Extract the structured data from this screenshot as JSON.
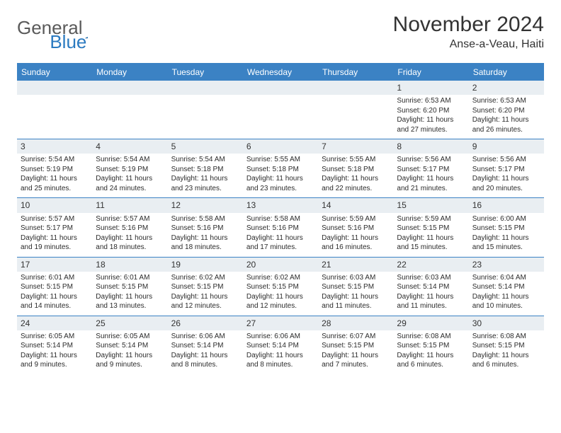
{
  "brand": {
    "part1": "General",
    "part2": "Blue"
  },
  "title": "November 2024",
  "location": "Anse-a-Veau, Haiti",
  "colors": {
    "header_bg": "#3b82c4",
    "header_text": "#ffffff",
    "daynum_bg": "#e9eef2",
    "border": "#3b82c4",
    "text": "#2b2b2b",
    "brand_gray": "#5a5a5a",
    "brand_blue": "#2b7ac0"
  },
  "daynames": [
    "Sunday",
    "Monday",
    "Tuesday",
    "Wednesday",
    "Thursday",
    "Friday",
    "Saturday"
  ],
  "weeks": [
    [
      {
        "empty": true
      },
      {
        "empty": true
      },
      {
        "empty": true
      },
      {
        "empty": true
      },
      {
        "empty": true
      },
      {
        "num": "1",
        "sunrise": "Sunrise: 6:53 AM",
        "sunset": "Sunset: 6:20 PM",
        "daylight": "Daylight: 11 hours and 27 minutes."
      },
      {
        "num": "2",
        "sunrise": "Sunrise: 6:53 AM",
        "sunset": "Sunset: 6:20 PM",
        "daylight": "Daylight: 11 hours and 26 minutes."
      }
    ],
    [
      {
        "num": "3",
        "sunrise": "Sunrise: 5:54 AM",
        "sunset": "Sunset: 5:19 PM",
        "daylight": "Daylight: 11 hours and 25 minutes."
      },
      {
        "num": "4",
        "sunrise": "Sunrise: 5:54 AM",
        "sunset": "Sunset: 5:19 PM",
        "daylight": "Daylight: 11 hours and 24 minutes."
      },
      {
        "num": "5",
        "sunrise": "Sunrise: 5:54 AM",
        "sunset": "Sunset: 5:18 PM",
        "daylight": "Daylight: 11 hours and 23 minutes."
      },
      {
        "num": "6",
        "sunrise": "Sunrise: 5:55 AM",
        "sunset": "Sunset: 5:18 PM",
        "daylight": "Daylight: 11 hours and 23 minutes."
      },
      {
        "num": "7",
        "sunrise": "Sunrise: 5:55 AM",
        "sunset": "Sunset: 5:18 PM",
        "daylight": "Daylight: 11 hours and 22 minutes."
      },
      {
        "num": "8",
        "sunrise": "Sunrise: 5:56 AM",
        "sunset": "Sunset: 5:17 PM",
        "daylight": "Daylight: 11 hours and 21 minutes."
      },
      {
        "num": "9",
        "sunrise": "Sunrise: 5:56 AM",
        "sunset": "Sunset: 5:17 PM",
        "daylight": "Daylight: 11 hours and 20 minutes."
      }
    ],
    [
      {
        "num": "10",
        "sunrise": "Sunrise: 5:57 AM",
        "sunset": "Sunset: 5:17 PM",
        "daylight": "Daylight: 11 hours and 19 minutes."
      },
      {
        "num": "11",
        "sunrise": "Sunrise: 5:57 AM",
        "sunset": "Sunset: 5:16 PM",
        "daylight": "Daylight: 11 hours and 18 minutes."
      },
      {
        "num": "12",
        "sunrise": "Sunrise: 5:58 AM",
        "sunset": "Sunset: 5:16 PM",
        "daylight": "Daylight: 11 hours and 18 minutes."
      },
      {
        "num": "13",
        "sunrise": "Sunrise: 5:58 AM",
        "sunset": "Sunset: 5:16 PM",
        "daylight": "Daylight: 11 hours and 17 minutes."
      },
      {
        "num": "14",
        "sunrise": "Sunrise: 5:59 AM",
        "sunset": "Sunset: 5:16 PM",
        "daylight": "Daylight: 11 hours and 16 minutes."
      },
      {
        "num": "15",
        "sunrise": "Sunrise: 5:59 AM",
        "sunset": "Sunset: 5:15 PM",
        "daylight": "Daylight: 11 hours and 15 minutes."
      },
      {
        "num": "16",
        "sunrise": "Sunrise: 6:00 AM",
        "sunset": "Sunset: 5:15 PM",
        "daylight": "Daylight: 11 hours and 15 minutes."
      }
    ],
    [
      {
        "num": "17",
        "sunrise": "Sunrise: 6:01 AM",
        "sunset": "Sunset: 5:15 PM",
        "daylight": "Daylight: 11 hours and 14 minutes."
      },
      {
        "num": "18",
        "sunrise": "Sunrise: 6:01 AM",
        "sunset": "Sunset: 5:15 PM",
        "daylight": "Daylight: 11 hours and 13 minutes."
      },
      {
        "num": "19",
        "sunrise": "Sunrise: 6:02 AM",
        "sunset": "Sunset: 5:15 PM",
        "daylight": "Daylight: 11 hours and 12 minutes."
      },
      {
        "num": "20",
        "sunrise": "Sunrise: 6:02 AM",
        "sunset": "Sunset: 5:15 PM",
        "daylight": "Daylight: 11 hours and 12 minutes."
      },
      {
        "num": "21",
        "sunrise": "Sunrise: 6:03 AM",
        "sunset": "Sunset: 5:15 PM",
        "daylight": "Daylight: 11 hours and 11 minutes."
      },
      {
        "num": "22",
        "sunrise": "Sunrise: 6:03 AM",
        "sunset": "Sunset: 5:14 PM",
        "daylight": "Daylight: 11 hours and 11 minutes."
      },
      {
        "num": "23",
        "sunrise": "Sunrise: 6:04 AM",
        "sunset": "Sunset: 5:14 PM",
        "daylight": "Daylight: 11 hours and 10 minutes."
      }
    ],
    [
      {
        "num": "24",
        "sunrise": "Sunrise: 6:05 AM",
        "sunset": "Sunset: 5:14 PM",
        "daylight": "Daylight: 11 hours and 9 minutes."
      },
      {
        "num": "25",
        "sunrise": "Sunrise: 6:05 AM",
        "sunset": "Sunset: 5:14 PM",
        "daylight": "Daylight: 11 hours and 9 minutes."
      },
      {
        "num": "26",
        "sunrise": "Sunrise: 6:06 AM",
        "sunset": "Sunset: 5:14 PM",
        "daylight": "Daylight: 11 hours and 8 minutes."
      },
      {
        "num": "27",
        "sunrise": "Sunrise: 6:06 AM",
        "sunset": "Sunset: 5:14 PM",
        "daylight": "Daylight: 11 hours and 8 minutes."
      },
      {
        "num": "28",
        "sunrise": "Sunrise: 6:07 AM",
        "sunset": "Sunset: 5:15 PM",
        "daylight": "Daylight: 11 hours and 7 minutes."
      },
      {
        "num": "29",
        "sunrise": "Sunrise: 6:08 AM",
        "sunset": "Sunset: 5:15 PM",
        "daylight": "Daylight: 11 hours and 6 minutes."
      },
      {
        "num": "30",
        "sunrise": "Sunrise: 6:08 AM",
        "sunset": "Sunset: 5:15 PM",
        "daylight": "Daylight: 11 hours and 6 minutes."
      }
    ]
  ]
}
